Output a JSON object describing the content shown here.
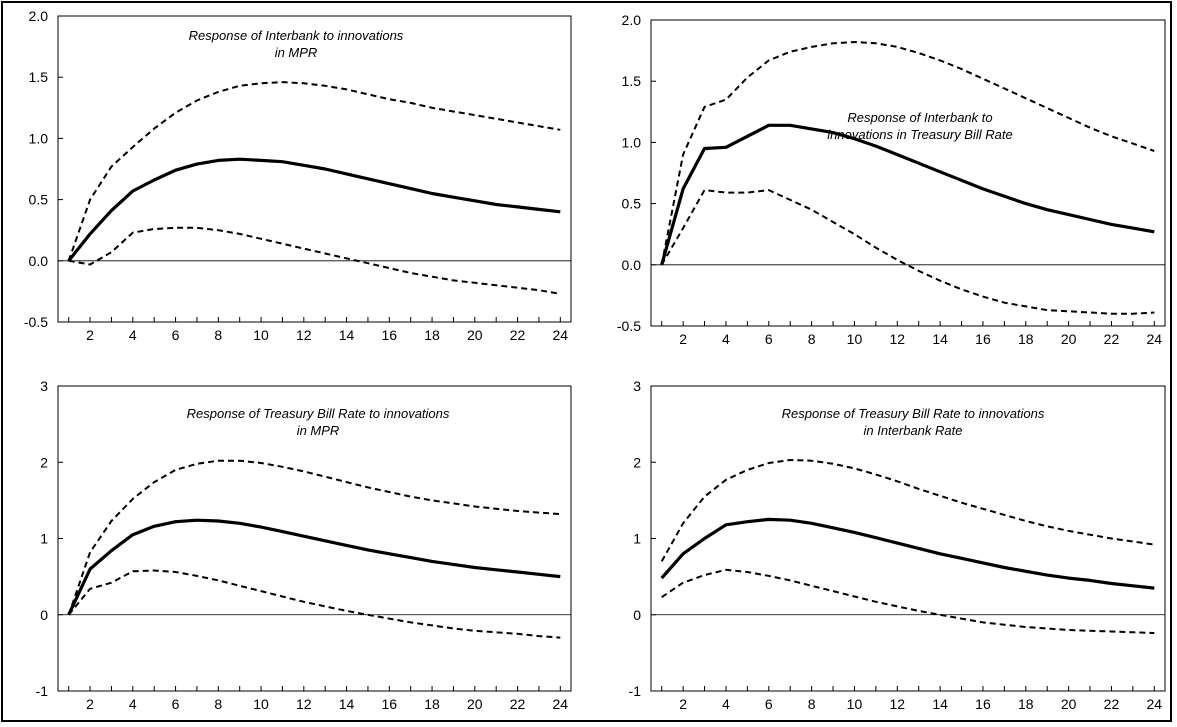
{
  "chart_data": [
    {
      "type": "line",
      "title": [
        "Response of Interbank to innovations",
        "in MPR"
      ],
      "x": [
        1,
        2,
        3,
        4,
        5,
        6,
        7,
        8,
        9,
        10,
        11,
        12,
        13,
        14,
        15,
        16,
        17,
        18,
        19,
        20,
        21,
        22,
        23,
        24
      ],
      "xticks": [
        2,
        4,
        6,
        8,
        10,
        12,
        14,
        16,
        18,
        20,
        22,
        24
      ],
      "ylim": [
        -0.5,
        2.0
      ],
      "yticks": [
        "-0.5",
        "0.0",
        "0.5",
        "1.0",
        "1.5",
        "2.0"
      ],
      "series": [
        {
          "style": "solid",
          "values": [
            0.0,
            0.22,
            0.41,
            0.57,
            0.66,
            0.74,
            0.79,
            0.82,
            0.83,
            0.82,
            0.81,
            0.78,
            0.75,
            0.71,
            0.67,
            0.63,
            0.59,
            0.55,
            0.52,
            0.49,
            0.46,
            0.44,
            0.42,
            0.4
          ]
        },
        {
          "style": "dashed",
          "values": [
            0.0,
            0.5,
            0.77,
            0.93,
            1.08,
            1.21,
            1.31,
            1.38,
            1.43,
            1.45,
            1.46,
            1.45,
            1.43,
            1.4,
            1.36,
            1.32,
            1.29,
            1.25,
            1.22,
            1.19,
            1.16,
            1.13,
            1.1,
            1.07
          ]
        },
        {
          "style": "dashed",
          "values": [
            0.0,
            -0.03,
            0.07,
            0.23,
            0.26,
            0.27,
            0.27,
            0.25,
            0.22,
            0.18,
            0.14,
            0.1,
            0.06,
            0.02,
            -0.02,
            -0.06,
            -0.1,
            -0.13,
            -0.16,
            -0.18,
            -0.2,
            -0.22,
            -0.24,
            -0.27
          ]
        }
      ]
    },
    {
      "type": "line",
      "title": [
        "Response of Interbank to",
        "innovations in Treasury Bill Rate"
      ],
      "x": [
        1,
        2,
        3,
        4,
        5,
        6,
        7,
        8,
        9,
        10,
        11,
        12,
        13,
        14,
        15,
        16,
        17,
        18,
        19,
        20,
        21,
        22,
        23,
        24
      ],
      "xticks": [
        2,
        4,
        6,
        8,
        10,
        12,
        14,
        16,
        18,
        20,
        22,
        24
      ],
      "ylim": [
        -0.5,
        2.0
      ],
      "yticks": [
        "-0.5",
        "0.0",
        "0.5",
        "1.0",
        "1.5",
        "2.0"
      ],
      "series": [
        {
          "style": "solid",
          "values": [
            0.0,
            0.62,
            0.95,
            0.96,
            1.05,
            1.14,
            1.14,
            1.11,
            1.08,
            1.03,
            0.97,
            0.9,
            0.83,
            0.76,
            0.69,
            0.62,
            0.56,
            0.5,
            0.45,
            0.41,
            0.37,
            0.33,
            0.3,
            0.27
          ]
        },
        {
          "style": "dashed",
          "values": [
            0.0,
            0.9,
            1.29,
            1.35,
            1.53,
            1.67,
            1.74,
            1.78,
            1.81,
            1.82,
            1.81,
            1.78,
            1.73,
            1.67,
            1.6,
            1.52,
            1.44,
            1.36,
            1.28,
            1.2,
            1.12,
            1.05,
            0.99,
            0.93
          ]
        },
        {
          "style": "dashed",
          "values": [
            0.0,
            0.3,
            0.61,
            0.59,
            0.59,
            0.61,
            0.53,
            0.45,
            0.35,
            0.25,
            0.14,
            0.04,
            -0.05,
            -0.13,
            -0.2,
            -0.26,
            -0.31,
            -0.34,
            -0.37,
            -0.38,
            -0.39,
            -0.4,
            -0.4,
            -0.39
          ]
        }
      ]
    },
    {
      "type": "line",
      "title": [
        "Response of Treasury Bill Rate to innovations",
        "in MPR"
      ],
      "x": [
        1,
        2,
        3,
        4,
        5,
        6,
        7,
        8,
        9,
        10,
        11,
        12,
        13,
        14,
        15,
        16,
        17,
        18,
        19,
        20,
        21,
        22,
        23,
        24
      ],
      "xticks": [
        2,
        4,
        6,
        8,
        10,
        12,
        14,
        16,
        18,
        20,
        22,
        24
      ],
      "ylim": [
        -1,
        3
      ],
      "yticks": [
        "-1",
        "0",
        "1",
        "2",
        "3"
      ],
      "series": [
        {
          "style": "solid",
          "values": [
            0.0,
            0.6,
            0.84,
            1.05,
            1.16,
            1.22,
            1.24,
            1.23,
            1.2,
            1.15,
            1.09,
            1.03,
            0.97,
            0.91,
            0.85,
            0.8,
            0.75,
            0.7,
            0.66,
            0.62,
            0.59,
            0.56,
            0.53,
            0.5
          ]
        },
        {
          "style": "dashed",
          "values": [
            0.0,
            0.82,
            1.23,
            1.52,
            1.74,
            1.9,
            1.98,
            2.02,
            2.02,
            1.99,
            1.94,
            1.88,
            1.81,
            1.74,
            1.67,
            1.61,
            1.55,
            1.5,
            1.46,
            1.42,
            1.39,
            1.36,
            1.34,
            1.32
          ]
        },
        {
          "style": "dashed",
          "values": [
            0.0,
            0.34,
            0.42,
            0.57,
            0.58,
            0.56,
            0.51,
            0.45,
            0.38,
            0.31,
            0.24,
            0.17,
            0.11,
            0.05,
            0.0,
            -0.05,
            -0.1,
            -0.14,
            -0.18,
            -0.21,
            -0.23,
            -0.25,
            -0.28,
            -0.3
          ]
        }
      ]
    },
    {
      "type": "line",
      "title": [
        "Response of Treasury Bill Rate to innovations",
        "in Interbank Rate"
      ],
      "x": [
        1,
        2,
        3,
        4,
        5,
        6,
        7,
        8,
        9,
        10,
        11,
        12,
        13,
        14,
        15,
        16,
        17,
        18,
        19,
        20,
        21,
        22,
        23,
        24
      ],
      "xticks": [
        2,
        4,
        6,
        8,
        10,
        12,
        14,
        16,
        18,
        20,
        22,
        24
      ],
      "ylim": [
        -1,
        3
      ],
      "yticks": [
        "-1",
        "0",
        "1",
        "2",
        "3"
      ],
      "series": [
        {
          "style": "solid",
          "values": [
            0.48,
            0.8,
            1.0,
            1.18,
            1.22,
            1.25,
            1.24,
            1.2,
            1.14,
            1.08,
            1.01,
            0.94,
            0.87,
            0.8,
            0.74,
            0.68,
            0.62,
            0.57,
            0.52,
            0.48,
            0.45,
            0.41,
            0.38,
            0.35
          ]
        },
        {
          "style": "dashed",
          "values": [
            0.7,
            1.2,
            1.55,
            1.77,
            1.9,
            1.99,
            2.03,
            2.02,
            1.98,
            1.92,
            1.84,
            1.75,
            1.65,
            1.56,
            1.47,
            1.39,
            1.31,
            1.23,
            1.16,
            1.1,
            1.05,
            1.0,
            0.96,
            0.92
          ]
        },
        {
          "style": "dashed",
          "values": [
            0.23,
            0.42,
            0.52,
            0.59,
            0.56,
            0.51,
            0.45,
            0.38,
            0.31,
            0.24,
            0.17,
            0.11,
            0.05,
            0.0,
            -0.05,
            -0.1,
            -0.13,
            -0.16,
            -0.18,
            -0.2,
            -0.21,
            -0.22,
            -0.23,
            -0.24
          ]
        }
      ]
    }
  ]
}
